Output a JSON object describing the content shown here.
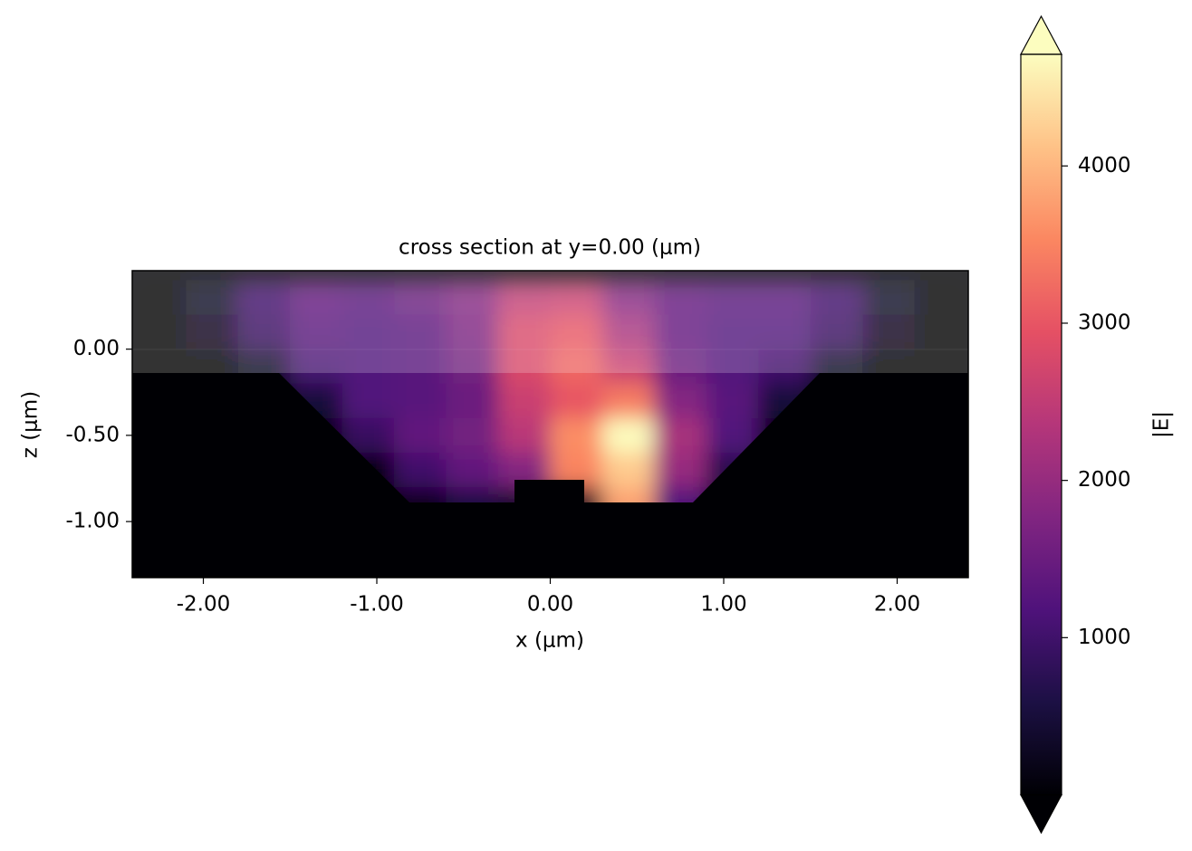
{
  "chart_data": {
    "type": "heatmap",
    "title": "cross section at y=0.00 (μm)",
    "x_label": "x (μm)",
    "y_label": "z (μm)",
    "xlim": [
      -2.41,
      2.41
    ],
    "ylim": [
      -1.325,
      0.455
    ],
    "xticks": [
      {
        "value": -2,
        "label": "-2.00"
      },
      {
        "value": -1,
        "label": "-1.00"
      },
      {
        "value": 0,
        "label": "0.00"
      },
      {
        "value": 1,
        "label": "1.00"
      },
      {
        "value": 2,
        "label": "2.00"
      }
    ],
    "yticks": [
      {
        "value": 0,
        "label": "0.00"
      },
      {
        "value": -0.5,
        "label": "-0.50"
      },
      {
        "value": -1,
        "label": "-1.00"
      }
    ],
    "x_edges": [
      -2.4,
      -2.1,
      -1.8,
      -1.5,
      -1.2,
      -0.9,
      -0.6,
      -0.3,
      0,
      0.3,
      0.6,
      0.9,
      1.2,
      1.5,
      1.8,
      2.1,
      2.4
    ],
    "y_edges": [
      0.4,
      0.2,
      0,
      -0.2,
      -0.4,
      -0.6,
      -0.8,
      -1.0,
      -1.2
    ],
    "z": [
      [
        0,
        300,
        1000,
        1400,
        1300,
        1500,
        1800,
        2500,
        2600,
        1800,
        1400,
        1300,
        1300,
        1000,
        300,
        0
      ],
      [
        0,
        200,
        900,
        1300,
        1200,
        1300,
        1700,
        2800,
        3000,
        2200,
        1400,
        1200,
        1200,
        900,
        200,
        0
      ],
      [
        0,
        0,
        300,
        1100,
        1200,
        1300,
        1600,
        2800,
        3200,
        2600,
        1500,
        1200,
        1000,
        300,
        0,
        0
      ],
      [
        0,
        0,
        0,
        500,
        1200,
        1300,
        1500,
        2600,
        3000,
        3400,
        1800,
        1300,
        500,
        0,
        0,
        0
      ],
      [
        0,
        0,
        0,
        0,
        900,
        1400,
        1600,
        2400,
        3600,
        4700,
        2200,
        1200,
        0,
        0,
        0,
        0
      ],
      [
        0,
        0,
        0,
        0,
        0,
        1000,
        1400,
        1800,
        3500,
        4200,
        2000,
        700,
        0,
        0,
        0,
        0
      ],
      [
        0,
        0,
        0,
        0,
        0,
        200,
        600,
        400,
        300,
        3800,
        1200,
        0,
        0,
        0,
        0,
        0
      ],
      [
        0,
        0,
        0,
        0,
        0,
        0,
        0,
        0,
        0,
        0,
        0,
        0,
        0,
        0,
        0,
        0
      ]
    ],
    "colormap": "magma",
    "colorbar": {
      "label": "|E|",
      "clim": [
        0,
        4710
      ],
      "ticks": [
        1000,
        2000,
        3000,
        4000
      ],
      "extend": "both"
    }
  }
}
